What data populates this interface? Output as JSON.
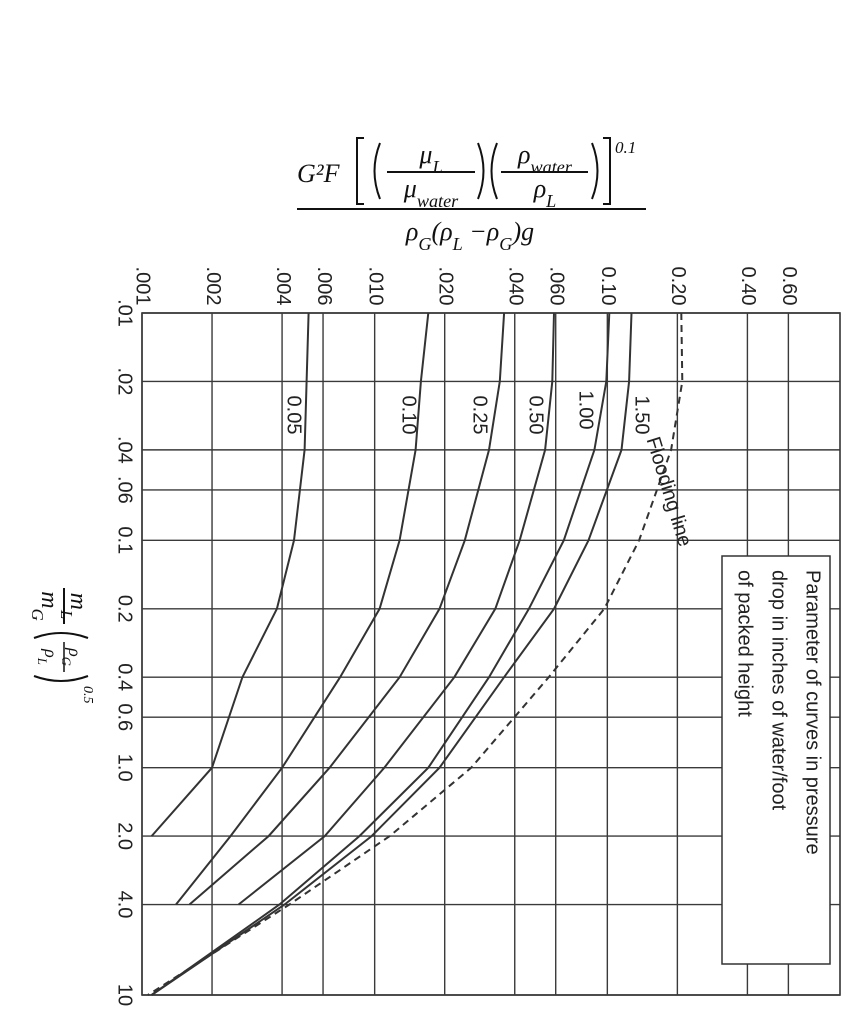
{
  "chart_data": {
    "type": "line",
    "xscale": "log",
    "yscale": "log",
    "grid": true,
    "ylabel": {
      "factor": "G²F",
      "mu": [
        "μ",
        "L"
      ],
      "mu_water": [
        "μ",
        "water"
      ],
      "rho_water": [
        "ρ",
        "water"
      ],
      "rho": [
        "ρ",
        "L"
      ],
      "exponent": "0.1",
      "denominator": [
        "ρ",
        "G",
        "(ρ",
        "L",
        " −ρ",
        "G",
        ")g"
      ]
    },
    "xlabel": {
      "numerator": [
        "m",
        "L"
      ],
      "denominator": [
        "m",
        "G"
      ],
      "rho_num": [
        "ρ",
        "G"
      ],
      "rho_den": [
        "ρ",
        "L"
      ],
      "exponent": "0.5"
    },
    "x": [
      0.01,
      0.02,
      0.04,
      0.1,
      0.2,
      0.4,
      1,
      2,
      4,
      10
    ],
    "xlim": [
      0.01,
      10
    ],
    "xticks": [
      {
        "value": 0.01,
        "label": ".01"
      },
      {
        "value": 0.02,
        "label": ".02"
      },
      {
        "value": 0.04,
        "label": ".04"
      },
      {
        "value": 0.06,
        "label": ".06"
      },
      0.1,
      0.2,
      0.4,
      0.6,
      {
        "value": 1,
        "label": "1.0"
      },
      {
        "value": 2,
        "label": "2.0"
      },
      {
        "value": 4,
        "label": "4.0"
      },
      10
    ],
    "ylim": [
      0.001,
      1
    ],
    "yticks": [
      {
        "value": 0.001,
        "label": ".001"
      },
      {
        "value": 0.002,
        "label": ".002"
      },
      {
        "value": 0.004,
        "label": ".004"
      },
      {
        "value": 0.006,
        "label": ".006"
      },
      {
        "value": 0.01,
        "label": ".010"
      },
      {
        "value": 0.02,
        "label": ".020"
      },
      {
        "value": 0.04,
        "label": ".040"
      },
      {
        "value": 0.06,
        "label": ".060"
      },
      {
        "value": 0.1,
        "label": "0.10"
      },
      {
        "value": 0.2,
        "label": "0.20"
      },
      {
        "value": 0.4,
        "label": "0.40"
      },
      {
        "value": 0.6,
        "label": "0.60"
      }
    ],
    "series": [
      {
        "name": "0.05",
        "color": "#333333",
        "values": [
          0.0052,
          0.0051,
          0.005,
          0.0045,
          0.0038,
          0.0027,
          0.002,
          0.0011,
          null,
          null
        ]
      },
      {
        "name": "0.10",
        "color": "#333333",
        "values": [
          0.017,
          0.0158,
          0.015,
          0.0128,
          0.0105,
          0.0071,
          0.004,
          0.0024,
          0.0014,
          null
        ]
      },
      {
        "name": "0.25",
        "color": "#333333",
        "values": [
          0.036,
          0.0345,
          0.031,
          0.0244,
          0.019,
          0.0128,
          0.0064,
          0.0035,
          0.0016,
          null
        ]
      },
      {
        "name": "0.50",
        "color": "#333333",
        "values": [
          0.059,
          0.058,
          0.054,
          0.042,
          0.033,
          0.022,
          0.011,
          0.0061,
          0.0026,
          null
        ]
      },
      {
        "name": "1.00",
        "color": "#333333",
        "values": [
          0.102,
          0.099,
          0.088,
          0.065,
          0.046,
          0.031,
          0.017,
          0.0086,
          0.0039,
          0.0011
        ]
      },
      {
        "name": "1.50",
        "color": "#333333",
        "values": [
          0.127,
          0.124,
          0.115,
          0.083,
          0.059,
          0.036,
          0.019,
          0.0097,
          0.0041,
          0.0011
        ]
      },
      {
        "name": "Flooding line",
        "color": "#333333",
        "dashed": true,
        "values": [
          0.208,
          0.21,
          0.188,
          0.137,
          0.097,
          0.056,
          0.026,
          0.0116,
          0.0043,
          0.00106
        ]
      }
    ],
    "note": [
      "Parameter of curves in pressure",
      "drop in inches of water/foot",
      "of packed height"
    ]
  }
}
